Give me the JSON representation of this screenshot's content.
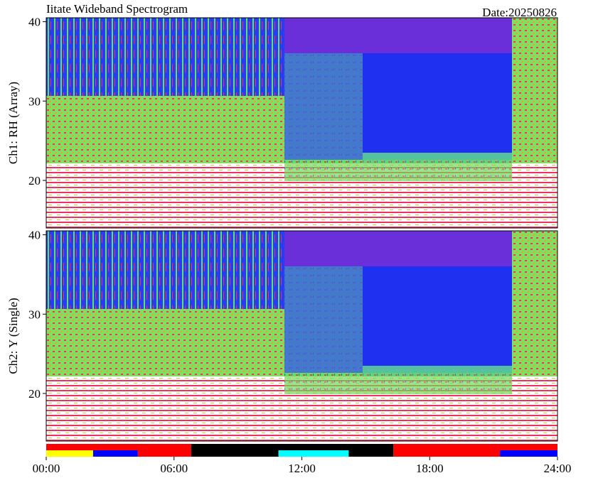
{
  "chart_data": {
    "type": "spectrogram",
    "title": "Iitate Wideband Spectrogram",
    "date": "Date:20250826",
    "xlim": [
      0,
      24
    ],
    "xticks": [
      {
        "value": 0,
        "label": "00:00"
      },
      {
        "value": 6,
        "label": "06:00"
      },
      {
        "value": 12,
        "label": "12:00"
      },
      {
        "value": 18,
        "label": "18:00"
      },
      {
        "value": 24,
        "label": "24:00"
      }
    ],
    "panels": [
      {
        "ylabel": "Ch1: RH (Array)",
        "ylim": [
          14,
          40.5
        ],
        "yticks": [
          20,
          30,
          40
        ]
      },
      {
        "ylabel": "Ch2: Y (Single)",
        "ylim": [
          14,
          40.5
        ],
        "yticks": [
          20,
          30,
          40
        ]
      }
    ],
    "status_rows": [
      {
        "segments": [
          {
            "start": 0,
            "end": 6.8,
            "color": "#ff0000"
          },
          {
            "start": 6.8,
            "end": 16.3,
            "color": "#000000"
          },
          {
            "start": 16.3,
            "end": 24,
            "color": "#ff0000"
          }
        ]
      },
      {
        "segments": [
          {
            "start": 0,
            "end": 2.2,
            "color": "#ffff00"
          },
          {
            "start": 2.2,
            "end": 4.3,
            "color": "#0000ff"
          },
          {
            "start": 4.3,
            "end": 6.8,
            "color": "#ff0000"
          },
          {
            "start": 6.8,
            "end": 10.9,
            "color": "#000000"
          },
          {
            "start": 10.9,
            "end": 14.2,
            "color": "#00ffff"
          },
          {
            "start": 14.2,
            "end": 16.3,
            "color": "#000000"
          },
          {
            "start": 16.3,
            "end": 21.3,
            "color": "#ff0000"
          },
          {
            "start": 21.3,
            "end": 24,
            "color": "#0000ff"
          }
        ]
      }
    ]
  }
}
